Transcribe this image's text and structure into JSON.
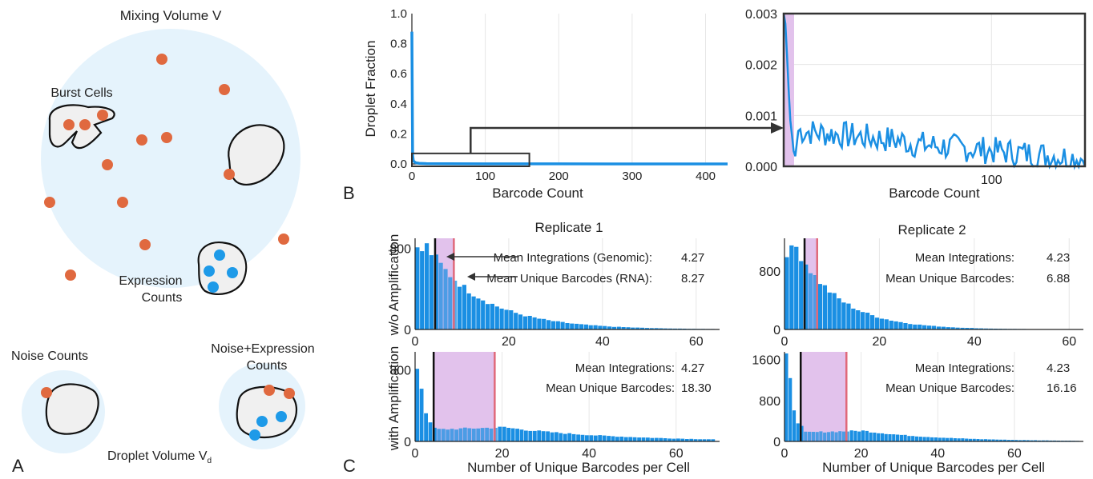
{
  "panel_a": {
    "letter": "A",
    "title": "Mixing Volume V",
    "burst_label": "Burst Cells",
    "expr_label_1": "Expression",
    "expr_label_2": "Counts",
    "noise_label": "Noise Counts",
    "ne_label_1": "Noise+Expression",
    "ne_label_2": "Counts",
    "droplet_label": "Droplet Volume V",
    "droplet_sub": "d",
    "colors": {
      "bg": "#e5f3fc",
      "noise_dot": "#e0693f",
      "expr_dot": "#1e9ae8",
      "cell": "#f0f0f0"
    }
  },
  "panel_b_letter": "B",
  "panel_c_letter": "C",
  "colors": {
    "bar": "#1a8fe3",
    "line": "#1a8fe3",
    "band": "#e2c2ec",
    "mean_int": "#111111",
    "mean_bc": "#e0697a"
  },
  "chart_data": [
    {
      "id": "b-full",
      "type": "line",
      "xlabel": "Barcode Count",
      "ylabel": "Droplet Fraction",
      "xlim": [
        0,
        430
      ],
      "ylim": [
        0,
        1.0
      ],
      "x_ticks": [
        "0",
        "100",
        "200",
        "300",
        "400"
      ],
      "y_ticks": [
        "0.0",
        "0.2",
        "0.4",
        "0.6",
        "0.8",
        "1.0"
      ],
      "x": [
        0,
        1,
        2,
        5,
        10,
        20,
        50,
        100,
        200,
        300,
        430
      ],
      "y": [
        0.88,
        0.06,
        0.02,
        0.008,
        0.004,
        0.002,
        0.001,
        0.0006,
        0.0003,
        0.0002,
        0.0001
      ],
      "zoom_box": {
        "x": [
          0,
          160
        ],
        "y": [
          0,
          0.07
        ]
      }
    },
    {
      "id": "b-zoom",
      "type": "line",
      "xlabel": "Barcode Count",
      "ylabel": "",
      "xlim": [
        0,
        145
      ],
      "ylim": [
        0,
        0.003
      ],
      "x_ticks": [
        "100"
      ],
      "y_ticks": [
        "0.000",
        "0.001",
        "0.002",
        "0.003"
      ],
      "shaded_x": [
        0,
        5
      ]
    },
    {
      "id": "c-r1-wo",
      "type": "bar",
      "title": "Replicate 1",
      "ylabel": "w/o Amplification",
      "xlim": [
        0,
        65
      ],
      "ylim": [
        0,
        900
      ],
      "x_ticks": [
        "0",
        "20",
        "40",
        "60"
      ],
      "y_ticks": [
        "0",
        "800"
      ],
      "mean_integrations": 4.27,
      "mean_unique_barcodes": 8.27,
      "annotation_1_label": "Mean Integrations (Genomic):",
      "annotation_1_value": "4.27",
      "annotation_2_label": "Mean Unique Barcodes (RNA):",
      "annotation_2_value": "8.27",
      "decay": "dist1",
      "peak": 820
    },
    {
      "id": "c-r2-wo",
      "type": "bar",
      "title": "Replicate 2",
      "ylabel": "",
      "xlim": [
        0,
        63
      ],
      "ylim": [
        0,
        1250
      ],
      "x_ticks": [
        "0",
        "20",
        "40",
        "60"
      ],
      "y_ticks": [
        "0",
        "800"
      ],
      "mean_integrations": 4.23,
      "mean_unique_barcodes": 6.88,
      "annotation_1_label": "Mean Integrations:",
      "annotation_1_value": "4.23",
      "annotation_2_label": "Mean Unique Barcodes:",
      "annotation_2_value": "6.88",
      "decay": "dist2",
      "peak": 1130
    },
    {
      "id": "c-r1-with",
      "type": "bar",
      "title": "",
      "ylabel": "with Amplification",
      "xlabel": "Number of Unique Barcodes per Cell",
      "xlim": [
        0,
        70
      ],
      "ylim": [
        0,
        1000
      ],
      "x_ticks": [
        "0",
        "20",
        "40",
        "60"
      ],
      "y_ticks": [
        "0",
        "800"
      ],
      "mean_integrations": 4.27,
      "mean_unique_barcodes": 18.3,
      "annotation_1_label": "Mean Integrations:",
      "annotation_1_value": "4.27",
      "annotation_2_label": "Mean Unique Barcodes:",
      "annotation_2_value": "18.30",
      "decay": "amp1",
      "peak": 830
    },
    {
      "id": "c-r2-with",
      "type": "bar",
      "title": "",
      "xlabel": "Number of Unique Barcodes per Cell",
      "xlim": [
        0,
        78
      ],
      "ylim": [
        0,
        1750
      ],
      "x_ticks": [
        "0",
        "20",
        "40",
        "60"
      ],
      "y_ticks": [
        "0",
        "800",
        "1600"
      ],
      "mean_integrations": 4.23,
      "mean_unique_barcodes": 16.16,
      "annotation_1_label": "Mean Integrations:",
      "annotation_1_value": "4.23",
      "annotation_2_label": "Mean Unique Barcodes:",
      "annotation_2_value": "16.16",
      "decay": "amp2",
      "peak": 1600
    }
  ]
}
